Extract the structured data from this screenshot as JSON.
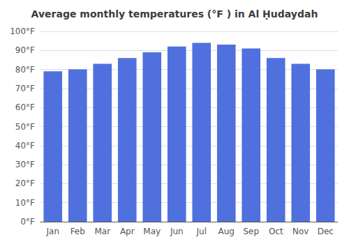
{
  "chart_data": {
    "type": "bar",
    "title": "Average monthly temperatures (°F ) in Al Ḥudaydah",
    "categories": [
      "Jan",
      "Feb",
      "Mar",
      "Apr",
      "May",
      "Jun",
      "Jul",
      "Aug",
      "Sep",
      "Oct",
      "Nov",
      "Dec"
    ],
    "values": [
      79,
      80,
      83,
      86,
      89,
      92,
      94,
      93,
      91,
      86,
      83,
      80
    ],
    "ylim": [
      0,
      100
    ],
    "yticks": [
      {
        "value": 0,
        "label": "0°F"
      },
      {
        "value": 10,
        "label": "10°F"
      },
      {
        "value": 20,
        "label": "20°F"
      },
      {
        "value": 30,
        "label": "30°F"
      },
      {
        "value": 40,
        "label": "40°F"
      },
      {
        "value": 50,
        "label": "50°F"
      },
      {
        "value": 60,
        "label": "60°F"
      },
      {
        "value": 70,
        "label": "70°F"
      },
      {
        "value": 80,
        "label": "80°F"
      },
      {
        "value": 90,
        "label": "90°F"
      },
      {
        "value": 100,
        "label": "100°F"
      }
    ],
    "grid": true
  }
}
